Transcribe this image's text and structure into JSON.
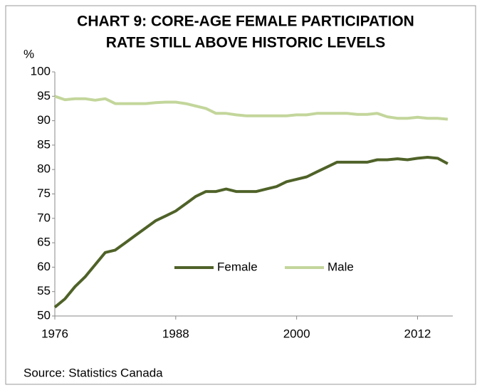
{
  "chart_data": {
    "type": "line",
    "title": [
      "CHART 9: CORE-AGE FEMALE PARTICIPATION",
      "RATE STILL ABOVE HISTORIC LEVELS"
    ],
    "y_label": "%",
    "source": "Source: Statistics Canada",
    "x": [
      1976,
      1977,
      1978,
      1979,
      1980,
      1981,
      1982,
      1983,
      1984,
      1985,
      1986,
      1987,
      1988,
      1989,
      1990,
      1991,
      1992,
      1993,
      1994,
      1995,
      1996,
      1997,
      1998,
      1999,
      2000,
      2001,
      2002,
      2003,
      2004,
      2005,
      2006,
      2007,
      2008,
      2009,
      2010,
      2011,
      2012,
      2013,
      2014,
      2015
    ],
    "series": [
      {
        "name": "Female",
        "color": "#4f6228",
        "values": [
          51.8,
          53.5,
          56,
          58,
          60.5,
          63,
          63.5,
          65,
          66.5,
          68,
          69.5,
          70.5,
          71.5,
          73,
          74.5,
          75.5,
          75.5,
          76,
          75.5,
          75.5,
          75.5,
          76,
          76.5,
          77.5,
          78,
          78.5,
          79.5,
          80.5,
          81.5,
          81.5,
          81.5,
          81.5,
          82,
          82,
          82.2,
          82,
          82.3,
          82.5,
          82.3,
          81.2
        ]
      },
      {
        "name": "Male",
        "color": "#c3d69b",
        "values": [
          95,
          94.3,
          94.5,
          94.5,
          94.2,
          94.5,
          93.5,
          93.5,
          93.5,
          93.5,
          93.7,
          93.8,
          93.8,
          93.5,
          93,
          92.5,
          91.5,
          91.5,
          91.2,
          91,
          91,
          91,
          91,
          91,
          91.2,
          91.2,
          91.5,
          91.5,
          91.5,
          91.5,
          91.3,
          91.3,
          91.5,
          90.8,
          90.5,
          90.5,
          90.7,
          90.5,
          90.5,
          90.3
        ]
      }
    ],
    "xlim": [
      1976,
      2015.5
    ],
    "xticks": [
      1976,
      1988,
      2000,
      2012
    ],
    "ylim": [
      50,
      100
    ],
    "yticks": [
      50,
      55,
      60,
      65,
      70,
      75,
      80,
      85,
      90,
      95,
      100
    ],
    "grid": false
  }
}
